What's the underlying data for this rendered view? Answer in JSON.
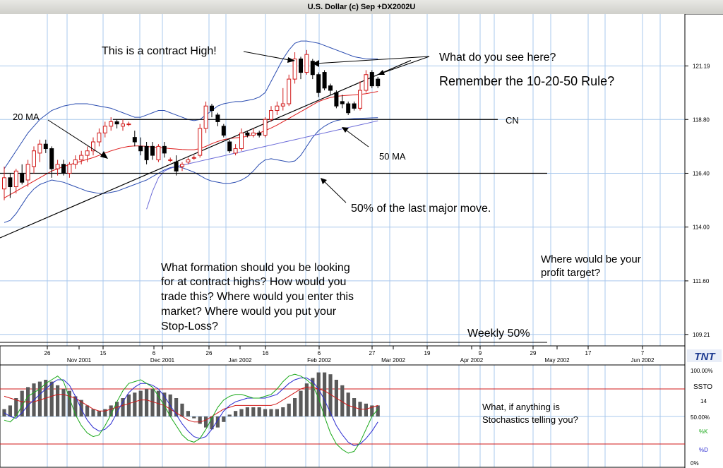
{
  "window_title": "U.S. Dollar (c) Sep +DX2002U",
  "colors": {
    "grid": "#a9c8ec",
    "candle_up": "#d01818",
    "candle_down": "#000000",
    "ma20": "#dd1a1a",
    "ma50": "#6b6bd8",
    "bands": "#2a4cb0",
    "stoch_k": "#18a818",
    "stoch_d": "#2a2ad0",
    "stoch_slow": "#d01818",
    "histogram": "#5a5a5a",
    "logo": "#1c3a90"
  },
  "chart_data": [
    {
      "type": "candlestick",
      "title": "U.S. Dollar (c) Sep +DX2002U",
      "ylim": [
        108.7,
        123.5
      ],
      "x_tick_labels": [
        "26",
        "Nov 2001",
        "15",
        "Dec 2001",
        "6",
        "26",
        "Jan 2002",
        "16",
        "Feb 2002",
        "6",
        "27",
        "Mar 2002",
        "19",
        "Apr 2002",
        "9",
        "29",
        "May 2002",
        "17",
        "Jun 2002",
        "7"
      ],
      "y_tick_labels": [
        "121.19",
        "118.80",
        "116.40",
        "114.00",
        "111.60",
        "109.21"
      ],
      "y_ticks": [
        121.19,
        118.8,
        116.4,
        114.0,
        111.6,
        109.21
      ],
      "candles": [
        {
          "o": 115.7,
          "h": 116.7,
          "l": 115.2,
          "c": 116.2
        },
        {
          "o": 116.2,
          "h": 116.4,
          "l": 115.3,
          "c": 115.8
        },
        {
          "o": 115.8,
          "h": 116.6,
          "l": 115.5,
          "c": 116.5
        },
        {
          "o": 116.4,
          "h": 116.8,
          "l": 115.9,
          "c": 116.0
        },
        {
          "o": 116.1,
          "h": 117.0,
          "l": 115.8,
          "c": 116.8
        },
        {
          "o": 116.7,
          "h": 117.6,
          "l": 116.4,
          "c": 117.4
        },
        {
          "o": 117.3,
          "h": 117.9,
          "l": 116.9,
          "c": 117.7
        },
        {
          "o": 117.7,
          "h": 117.9,
          "l": 117.3,
          "c": 117.5
        },
        {
          "o": 117.5,
          "h": 117.6,
          "l": 116.2,
          "c": 116.6
        },
        {
          "o": 116.6,
          "h": 117.0,
          "l": 116.3,
          "c": 116.8
        },
        {
          "o": 116.8,
          "h": 117.0,
          "l": 116.3,
          "c": 116.4
        },
        {
          "o": 116.4,
          "h": 116.9,
          "l": 116.2,
          "c": 116.8
        },
        {
          "o": 116.8,
          "h": 117.2,
          "l": 116.6,
          "c": 117.0
        },
        {
          "o": 117.0,
          "h": 117.4,
          "l": 116.8,
          "c": 117.2
        },
        {
          "o": 117.2,
          "h": 117.6,
          "l": 116.9,
          "c": 117.4
        },
        {
          "o": 117.4,
          "h": 118.0,
          "l": 117.2,
          "c": 117.8
        },
        {
          "o": 117.8,
          "h": 118.4,
          "l": 117.6,
          "c": 118.2
        },
        {
          "o": 118.2,
          "h": 118.7,
          "l": 118.0,
          "c": 118.5
        },
        {
          "o": 118.5,
          "h": 118.9,
          "l": 118.3,
          "c": 118.7
        },
        {
          "o": 118.7,
          "h": 118.8,
          "l": 118.4,
          "c": 118.6
        },
        {
          "o": 118.5,
          "h": 118.8,
          "l": 118.3,
          "c": 118.6
        },
        {
          "o": 118.6,
          "h": 118.7,
          "l": 118.5,
          "c": 118.6
        },
        {
          "o": 118.0,
          "h": 118.3,
          "l": 117.6,
          "c": 117.8
        },
        {
          "o": 117.6,
          "h": 118.0,
          "l": 117.2,
          "c": 117.4
        },
        {
          "o": 117.6,
          "h": 117.8,
          "l": 116.8,
          "c": 117.0
        },
        {
          "o": 117.6,
          "h": 117.8,
          "l": 117.0,
          "c": 117.2
        },
        {
          "o": 117.0,
          "h": 117.7,
          "l": 116.9,
          "c": 117.6
        },
        {
          "o": 117.6,
          "h": 117.8,
          "l": 117.1,
          "c": 117.3
        },
        {
          "o": 117.0,
          "h": 117.1,
          "l": 116.9,
          "c": 117.0
        },
        {
          "o": 116.9,
          "h": 117.2,
          "l": 116.3,
          "c": 116.5
        },
        {
          "o": 116.7,
          "h": 116.9,
          "l": 116.5,
          "c": 116.8
        },
        {
          "o": 116.9,
          "h": 117.1,
          "l": 116.8,
          "c": 117.0
        },
        {
          "o": 117.1,
          "h": 117.2,
          "l": 117.0,
          "c": 117.1
        },
        {
          "o": 117.2,
          "h": 118.6,
          "l": 117.1,
          "c": 118.4
        },
        {
          "o": 118.4,
          "h": 119.6,
          "l": 118.2,
          "c": 119.4
        },
        {
          "o": 119.4,
          "h": 119.5,
          "l": 118.9,
          "c": 119.2
        },
        {
          "o": 119.0,
          "h": 119.1,
          "l": 118.5,
          "c": 118.7
        },
        {
          "o": 118.5,
          "h": 118.6,
          "l": 118.0,
          "c": 118.1
        },
        {
          "o": 117.8,
          "h": 117.9,
          "l": 117.3,
          "c": 117.4
        },
        {
          "o": 117.3,
          "h": 117.7,
          "l": 117.2,
          "c": 117.5
        },
        {
          "o": 117.5,
          "h": 118.4,
          "l": 117.4,
          "c": 118.2
        },
        {
          "o": 118.2,
          "h": 118.3,
          "l": 118.0,
          "c": 118.1
        },
        {
          "o": 118.1,
          "h": 118.4,
          "l": 118.0,
          "c": 118.2
        },
        {
          "o": 118.2,
          "h": 118.3,
          "l": 118.0,
          "c": 118.1
        },
        {
          "o": 118.1,
          "h": 118.9,
          "l": 118.0,
          "c": 118.8
        },
        {
          "o": 118.8,
          "h": 119.4,
          "l": 118.7,
          "c": 119.2
        },
        {
          "o": 119.2,
          "h": 119.6,
          "l": 119.0,
          "c": 119.4
        },
        {
          "o": 119.4,
          "h": 120.2,
          "l": 119.2,
          "c": 119.5
        },
        {
          "o": 119.5,
          "h": 120.8,
          "l": 119.4,
          "c": 120.6
        },
        {
          "o": 120.6,
          "h": 121.8,
          "l": 120.4,
          "c": 121.5
        },
        {
          "o": 121.5,
          "h": 121.6,
          "l": 120.6,
          "c": 120.9
        },
        {
          "o": 120.9,
          "h": 121.9,
          "l": 120.8,
          "c": 121.7
        },
        {
          "o": 121.4,
          "h": 121.5,
          "l": 120.6,
          "c": 120.8
        },
        {
          "o": 120.8,
          "h": 120.9,
          "l": 119.8,
          "c": 120.0
        },
        {
          "o": 120.9,
          "h": 121.0,
          "l": 120.1,
          "c": 120.2
        },
        {
          "o": 120.3,
          "h": 120.4,
          "l": 119.9,
          "c": 120.1
        },
        {
          "o": 120.0,
          "h": 120.1,
          "l": 119.3,
          "c": 119.4
        },
        {
          "o": 119.6,
          "h": 119.9,
          "l": 119.3,
          "c": 119.5
        },
        {
          "o": 119.5,
          "h": 119.6,
          "l": 119.0,
          "c": 119.1
        },
        {
          "o": 119.5,
          "h": 119.6,
          "l": 119.2,
          "c": 119.3
        },
        {
          "o": 119.3,
          "h": 120.5,
          "l": 119.2,
          "c": 120.1
        },
        {
          "o": 120.1,
          "h": 121.0,
          "l": 120.0,
          "c": 120.8
        },
        {
          "o": 120.9,
          "h": 121.0,
          "l": 120.2,
          "c": 120.3
        },
        {
          "o": 120.6,
          "h": 120.7,
          "l": 120.2,
          "c": 120.3
        }
      ],
      "ma20": [
        115.3,
        115.45,
        115.6,
        115.75,
        115.9,
        116.05,
        116.2,
        116.35,
        116.5,
        116.6,
        116.7,
        116.78,
        116.86,
        116.94,
        117.02,
        117.1,
        117.2,
        117.3,
        117.4,
        117.48,
        117.55,
        117.6,
        117.62,
        117.62,
        117.6,
        117.57,
        117.55,
        117.53,
        117.5,
        117.48,
        117.46,
        117.45,
        117.45,
        117.5,
        117.6,
        117.72,
        117.82,
        117.9,
        117.95,
        117.98,
        118.0,
        118.05,
        118.12,
        118.2,
        118.3,
        118.42,
        118.55,
        118.7,
        118.85,
        119.0,
        119.15,
        119.3,
        119.45,
        119.6,
        119.7,
        119.78,
        119.83,
        119.86,
        119.88,
        119.9,
        119.92,
        119.95,
        120.0,
        120.05
      ],
      "ma50": [
        null,
        null,
        null,
        null,
        null,
        null,
        null,
        null,
        null,
        null,
        null,
        null,
        null,
        null,
        null,
        null,
        null,
        null,
        null,
        null,
        null,
        null,
        null,
        null,
        114.8,
        115.6,
        116.2,
        116.5,
        116.62,
        116.7,
        116.76,
        116.82,
        116.88,
        116.94,
        117.0,
        117.06,
        117.12,
        117.18,
        117.24,
        117.3,
        117.36,
        117.42,
        117.48,
        117.54,
        117.6,
        117.66,
        117.72,
        117.78,
        117.84,
        117.9,
        117.96,
        118.02,
        118.08,
        118.14,
        118.2,
        118.26,
        118.32,
        118.38,
        118.44,
        118.5,
        118.56,
        118.62,
        118.68,
        118.74
      ],
      "upper_band": [
        116.6,
        117.0,
        117.4,
        117.8,
        118.2,
        118.5,
        118.8,
        119.0,
        119.2,
        119.3,
        119.4,
        119.45,
        119.5,
        119.5,
        119.5,
        119.45,
        119.4,
        119.35,
        119.3,
        119.2,
        119.1,
        119.0,
        118.9,
        118.9,
        119.0,
        119.1,
        119.2,
        119.2,
        119.1,
        119.0,
        118.9,
        118.8,
        118.75,
        118.8,
        119.0,
        119.2,
        119.4,
        119.5,
        119.55,
        119.6,
        119.6,
        119.65,
        119.7,
        119.8,
        120.0,
        120.5,
        121.0,
        121.5,
        121.9,
        122.2,
        122.3,
        122.3,
        122.25,
        122.2,
        122.1,
        122.0,
        121.9,
        121.8,
        121.7,
        121.6,
        121.55,
        121.5,
        121.5,
        121.5
      ],
      "lower_band": [
        114.2,
        114.3,
        114.6,
        115.0,
        115.4,
        115.7,
        115.9,
        116.0,
        116.1,
        116.05,
        116.0,
        115.9,
        115.8,
        115.7,
        115.6,
        115.55,
        115.5,
        115.5,
        115.55,
        115.6,
        115.7,
        115.8,
        115.9,
        116.0,
        116.1,
        116.25,
        116.4,
        116.55,
        116.65,
        116.7,
        116.65,
        116.55,
        116.45,
        116.3,
        116.15,
        116.05,
        116.0,
        115.95,
        115.95,
        116.0,
        116.1,
        116.25,
        116.5,
        116.8,
        117.0,
        117.05,
        117.0,
        116.95,
        116.9,
        116.95,
        117.2,
        117.6,
        118.0,
        118.3,
        118.5,
        118.65,
        118.75,
        118.8,
        118.82,
        118.84,
        118.85,
        118.86,
        118.87,
        118.88
      ],
      "horizontal_levels": [
        {
          "name": "CN",
          "value": 118.8,
          "label": "CN"
        },
        {
          "name": "fifty-percent",
          "value": 116.4
        }
      ],
      "trendline": [
        [
          0,
          113.6
        ],
        [
          63,
          120.8
        ]
      ]
    },
    {
      "type": "bar",
      "title": "SSTO",
      "ylim": [
        0,
        100
      ],
      "y_tick_labels": [
        "100.00%",
        "SSTO",
        "14",
        "50.00%",
        "%K",
        "%D",
        "0%"
      ],
      "reference_lines": [
        80,
        20
      ],
      "hist_baseline": 50,
      "histogram": [
        58,
        62,
        70,
        78,
        82,
        86,
        88,
        90,
        88,
        84,
        80,
        78,
        72,
        68,
        62,
        58,
        56,
        58,
        62,
        66,
        70,
        74,
        76,
        78,
        80,
        80,
        78,
        76,
        74,
        70,
        64,
        56,
        48,
        42,
        38,
        36,
        38,
        44,
        52,
        56,
        58,
        60,
        60,
        60,
        58,
        58,
        58,
        60,
        64,
        70,
        78,
        86,
        92,
        98,
        98,
        96,
        90,
        84,
        76,
        70,
        66,
        64,
        62,
        62
      ],
      "k": [
        46,
        44,
        50,
        62,
        72,
        76,
        80,
        86,
        90,
        94,
        88,
        70,
        52,
        40,
        32,
        28,
        30,
        40,
        52,
        66,
        78,
        86,
        88,
        90,
        86,
        82,
        72,
        62,
        50,
        40,
        30,
        24,
        22,
        26,
        36,
        48,
        60,
        68,
        72,
        74,
        74,
        72,
        70,
        70,
        72,
        74,
        80,
        88,
        94,
        96,
        94,
        90,
        84,
        70,
        50,
        32,
        20,
        14,
        10,
        12,
        22,
        36,
        50,
        58
      ],
      "d": [
        54,
        50,
        48,
        54,
        62,
        68,
        74,
        80,
        86,
        90,
        90,
        84,
        72,
        58,
        46,
        38,
        34,
        36,
        42,
        54,
        66,
        76,
        82,
        86,
        86,
        84,
        80,
        72,
        62,
        52,
        42,
        34,
        28,
        26,
        28,
        36,
        46,
        56,
        62,
        66,
        68,
        70,
        70,
        70,
        70,
        72,
        74,
        80,
        86,
        90,
        92,
        92,
        88,
        80,
        68,
        54,
        40,
        30,
        22,
        18,
        20,
        26,
        34,
        44
      ],
      "slow": [
        72,
        70,
        68,
        66,
        66,
        66,
        68,
        70,
        72,
        74,
        74,
        72,
        70,
        66,
        62,
        58,
        56,
        56,
        58,
        60,
        62,
        64,
        66,
        68,
        68,
        66,
        64,
        62,
        58,
        54,
        50,
        46,
        44,
        44,
        46,
        50,
        54,
        58,
        60,
        62,
        62,
        62,
        62,
        62,
        62,
        62,
        64,
        68,
        72,
        76,
        80,
        82,
        82,
        80,
        78,
        74,
        70,
        66,
        62,
        60,
        58,
        58,
        60,
        62
      ]
    }
  ],
  "annotations": {
    "contract_high": "This is a contract High!",
    "what_see": "What do you see here?",
    "rule": "Remember the 10-20-50 Rule?",
    "ma20": "20 MA",
    "cn": "CN",
    "ma50": "50 MA",
    "fifty": "50% of the last major move.",
    "question": [
      "What formation should you be looking",
      "for at contract highs? How would you",
      "trade this? Where would you enter this",
      "market? Where would you put your",
      "Stop-Loss?"
    ],
    "profit": [
      "Where would be your",
      "profit target?"
    ],
    "weekly": "Weekly 50%",
    "stoch": [
      "What, if anything is",
      "Stochastics telling you?"
    ]
  },
  "logo_text": "TNT"
}
